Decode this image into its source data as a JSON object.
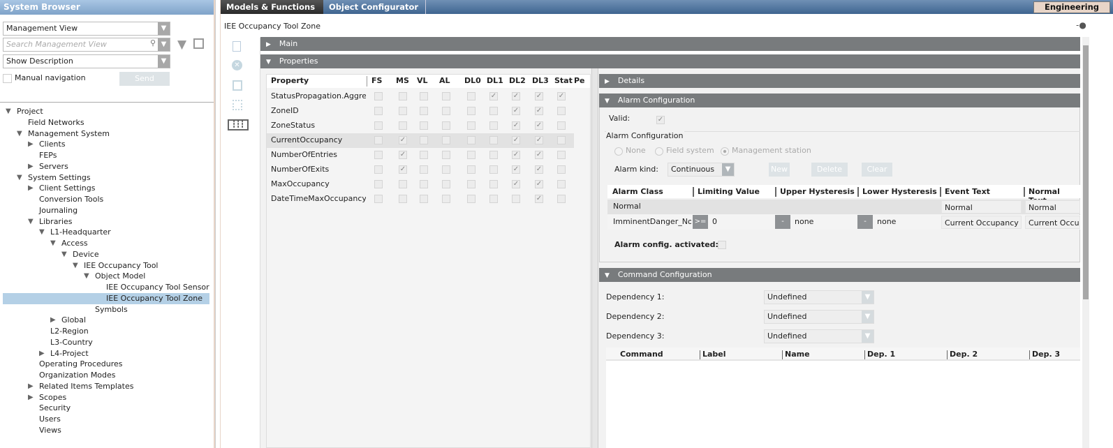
{
  "left": {
    "title": "System Browser",
    "view": "Management View",
    "search_placeholder": "Search Management View",
    "description": "Show Description",
    "manual_nav": "Manual navigation",
    "send": "Send",
    "tree": [
      {
        "label": "Project",
        "level": 0,
        "state": "open"
      },
      {
        "label": "Field Networks",
        "level": 1,
        "state": "leaf"
      },
      {
        "label": "Management System",
        "level": 1,
        "state": "open"
      },
      {
        "label": "Clients",
        "level": 2,
        "state": "closed"
      },
      {
        "label": "FEPs",
        "level": 2,
        "state": "leaf"
      },
      {
        "label": "Servers",
        "level": 2,
        "state": "closed"
      },
      {
        "label": "System Settings",
        "level": 1,
        "state": "open"
      },
      {
        "label": "Client Settings",
        "level": 2,
        "state": "closed"
      },
      {
        "label": "Conversion Tools",
        "level": 2,
        "state": "leaf"
      },
      {
        "label": "Journaling",
        "level": 2,
        "state": "leaf"
      },
      {
        "label": "Libraries",
        "level": 2,
        "state": "open"
      },
      {
        "label": "L1-Headquarter",
        "level": 3,
        "state": "open"
      },
      {
        "label": "Access",
        "level": 4,
        "state": "open"
      },
      {
        "label": "Device",
        "level": 5,
        "state": "open"
      },
      {
        "label": "IEE Occupancy Tool",
        "level": 6,
        "state": "open"
      },
      {
        "label": "Object Model",
        "level": 7,
        "state": "open"
      },
      {
        "label": "IEE Occupancy Tool Sensor",
        "level": 8,
        "state": "leaf"
      },
      {
        "label": "IEE Occupancy Tool Zone",
        "level": 8,
        "state": "leaf",
        "selected": true
      },
      {
        "label": "Symbols",
        "level": 7,
        "state": "leaf"
      },
      {
        "label": "Global",
        "level": 4,
        "state": "closed"
      },
      {
        "label": "L2-Region",
        "level": 3,
        "state": "leaf"
      },
      {
        "label": "L3-Country",
        "level": 3,
        "state": "leaf"
      },
      {
        "label": "L4-Project",
        "level": 3,
        "state": "closed"
      },
      {
        "label": "Operating Procedures",
        "level": 2,
        "state": "leaf"
      },
      {
        "label": "Organization Modes",
        "level": 2,
        "state": "leaf"
      },
      {
        "label": "Related Items Templates",
        "level": 2,
        "state": "closed"
      },
      {
        "label": "Scopes",
        "level": 2,
        "state": "closed"
      },
      {
        "label": "Security",
        "level": 2,
        "state": "leaf"
      },
      {
        "label": "Users",
        "level": 2,
        "state": "leaf"
      },
      {
        "label": "Views",
        "level": 2,
        "state": "leaf"
      }
    ]
  },
  "tabs": [
    "Models & Functions",
    "Object Configurator"
  ],
  "mode": "Engineering",
  "object_title": "IEE Occupancy Tool Zone",
  "sections": {
    "main": "Main",
    "properties": "Properties",
    "details": "Details",
    "alarm": "Alarm Configuration",
    "command": "Command Configuration"
  },
  "grid": {
    "columns": [
      "Property",
      "FS",
      "MS",
      "VL",
      "AL",
      "DL0",
      "DL1",
      "DL2",
      "DL3",
      "Stat",
      "Pe"
    ],
    "rows": [
      {
        "name": "StatusPropagation.Aggregate",
        "checks": [
          0,
          0,
          0,
          0,
          0,
          1,
          1,
          1,
          1
        ]
      },
      {
        "name": "ZoneID",
        "checks": [
          0,
          0,
          0,
          0,
          0,
          0,
          1,
          1,
          0
        ]
      },
      {
        "name": "ZoneStatus",
        "checks": [
          0,
          0,
          0,
          0,
          0,
          0,
          1,
          1,
          0
        ]
      },
      {
        "name": "CurrentOccupancy",
        "checks": [
          0,
          1,
          0,
          0,
          0,
          0,
          1,
          1,
          0
        ],
        "selected": true
      },
      {
        "name": "NumberOfEntries",
        "checks": [
          0,
          1,
          0,
          0,
          0,
          0,
          1,
          1,
          0
        ]
      },
      {
        "name": "NumberOfExits",
        "checks": [
          0,
          1,
          0,
          0,
          0,
          0,
          1,
          1,
          0
        ]
      },
      {
        "name": "MaxOccupancy",
        "checks": [
          0,
          0,
          0,
          0,
          0,
          0,
          1,
          1,
          0
        ]
      },
      {
        "name": "DateTimeMaxOccupancy",
        "checks": [
          0,
          0,
          0,
          0,
          0,
          0,
          0,
          1,
          0
        ]
      }
    ]
  },
  "alarm": {
    "valid_label": "Valid:",
    "valid": true,
    "group": "Alarm Configuration",
    "radios": [
      "None",
      "Field system",
      "Management station"
    ],
    "radio_selected": 2,
    "kind_label": "Alarm kind:",
    "kind": "Continuous",
    "buttons": [
      "New",
      "Delete",
      "Clear"
    ],
    "columns": [
      "Alarm Class",
      "Limiting Value",
      "Upper Hysteresis",
      "Lower Hysteresis",
      "Event Text",
      "Normal Text"
    ],
    "rows": [
      {
        "class": "Normal",
        "limit_op": "",
        "limit": "",
        "upper_op": "",
        "upper": "",
        "lower_op": "",
        "lower": "",
        "event": "Normal",
        "normal": "Normal"
      },
      {
        "class": "ImminentDanger_NoAck",
        "limit_op": ">=",
        "limit": "0",
        "upper_op": "-",
        "upper": "none",
        "lower_op": "-",
        "lower": "none",
        "event": "Current Occupancy Exceeded",
        "normal": "Current Occupancy"
      }
    ],
    "activated_label": "Alarm config. activated:"
  },
  "command": {
    "deps": [
      {
        "label": "Dependency 1:",
        "value": "Undefined"
      },
      {
        "label": "Dependency 2:",
        "value": "Undefined"
      },
      {
        "label": "Dependency 3:",
        "value": "Undefined"
      }
    ],
    "columns": [
      "Command",
      "Label",
      "Name",
      "Dep. 1",
      "Dep. 2",
      "Dep. 3"
    ]
  }
}
